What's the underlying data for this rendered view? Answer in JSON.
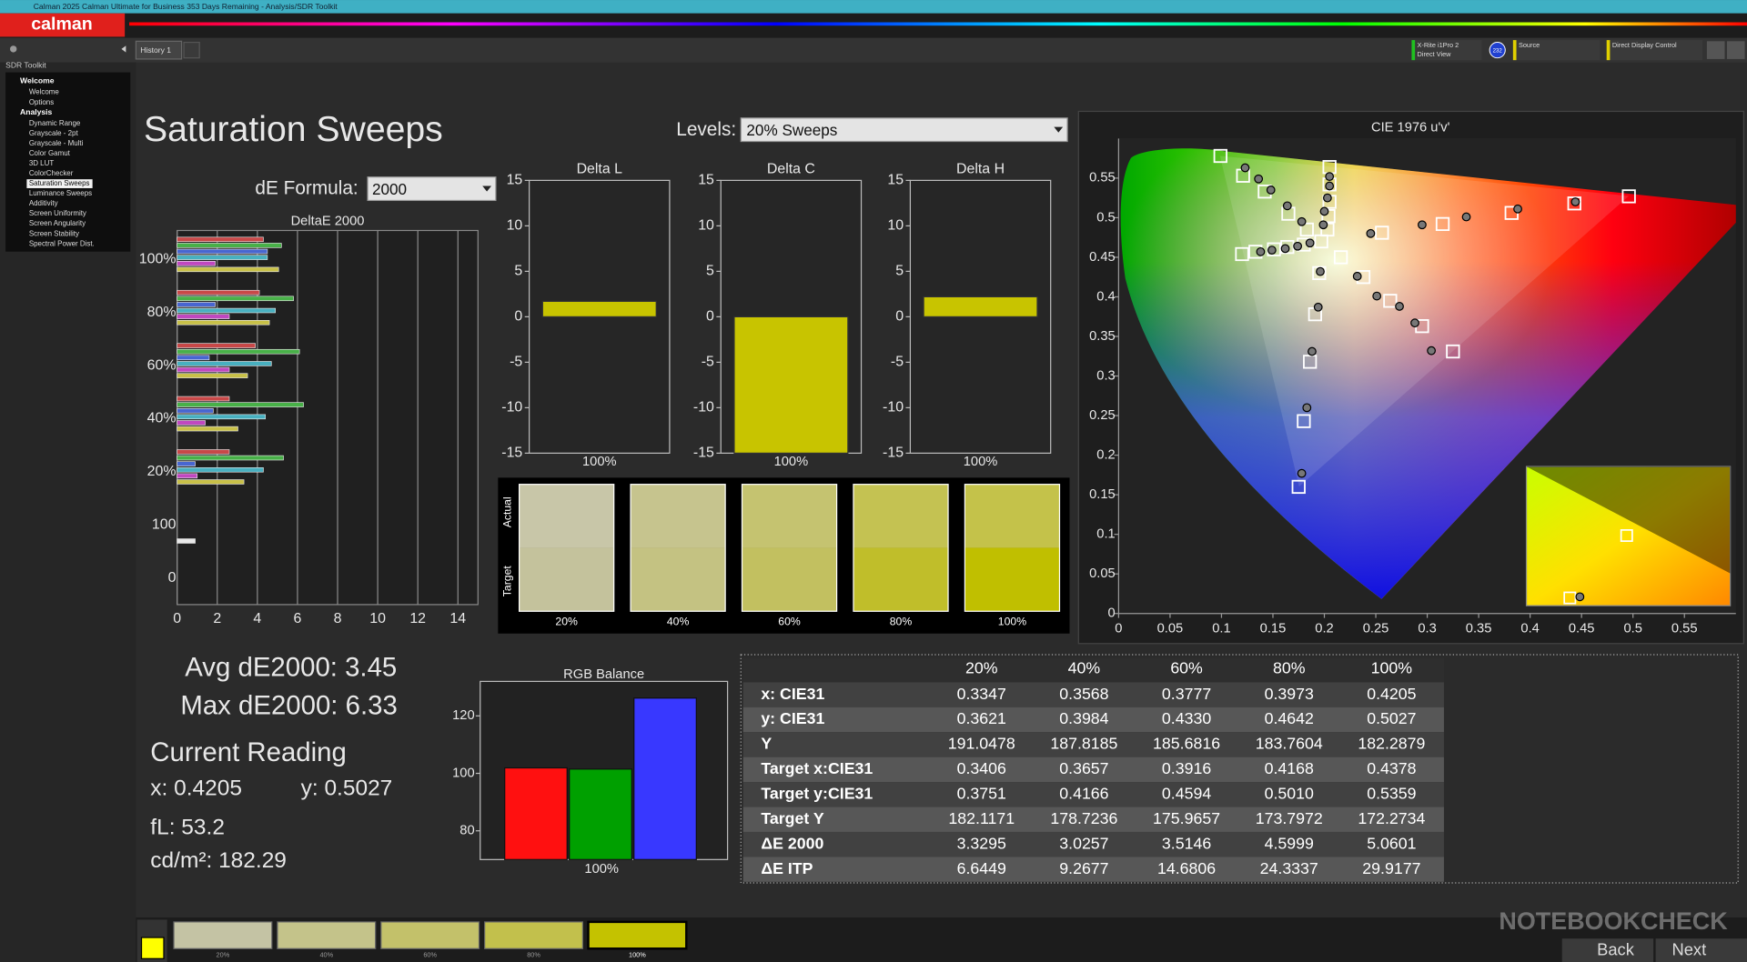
{
  "window": {
    "title": "Calman 2025 Calman Ultimate for Business 353 Days Remaining - Analysis/SDR Toolkit",
    "logo": "calman"
  },
  "tab": "History 1",
  "toolbar": {
    "meter": "X-Rite i1Pro 2",
    "meter_mode": "Direct View",
    "meter_badge": "232",
    "source": "Source",
    "display": "Direct Display Control"
  },
  "sidebar": {
    "title": "SDR Toolkit",
    "groups": [
      {
        "label": "Welcome",
        "items": [
          "Welcome",
          "Options"
        ]
      },
      {
        "label": "Analysis",
        "items": [
          "Dynamic Range",
          "Grayscale - 2pt",
          "Grayscale - Multi",
          "Color Gamut",
          "3D LUT",
          "ColorChecker",
          "Saturation Sweeps",
          "Luminance Sweeps",
          "Additivity",
          "Screen Uniformity",
          "Screen Angularity",
          "Screen Stability",
          "Spectral Power Dist."
        ]
      }
    ],
    "selected": [
      1,
      6
    ]
  },
  "page": {
    "title": "Saturation Sweeps",
    "levels_label": "Levels:",
    "levels_value": "20% Sweeps",
    "formula_label": "dE Formula:",
    "formula_value": "2000"
  },
  "de_chart": {
    "type": "bar",
    "orientation": "horizontal",
    "title": "DeltaE 2000",
    "categories": [
      "100%",
      "80%",
      "60%",
      "40%",
      "20%",
      "100",
      "0"
    ],
    "series": [
      {
        "color": "#c84848",
        "values": [
          4.3,
          4.1,
          3.9,
          2.6,
          2.6,
          null,
          null
        ]
      },
      {
        "color": "#48b048",
        "values": [
          5.2,
          5.8,
          6.1,
          6.3,
          5.3,
          null,
          null
        ]
      },
      {
        "color": "#4866d0",
        "values": [
          4.5,
          1.9,
          1.6,
          1.8,
          0.9,
          null,
          null
        ]
      },
      {
        "color": "#48b0c0",
        "values": [
          4.5,
          4.9,
          4.7,
          4.4,
          4.3,
          null,
          null
        ]
      },
      {
        "color": "#c048c0",
        "values": [
          1.9,
          2.6,
          2.6,
          1.4,
          1.0,
          null,
          null
        ]
      },
      {
        "color": "#c8c048",
        "values": [
          5.06,
          4.6,
          3.51,
          3.03,
          3.33,
          null,
          null
        ]
      },
      {
        "color": "#e8e8e8",
        "values": [
          null,
          null,
          null,
          null,
          null,
          0.9,
          null
        ]
      }
    ],
    "xlim": [
      0,
      15
    ],
    "xticks": [
      0,
      2,
      4,
      6,
      8,
      10,
      12,
      14
    ],
    "grid": true
  },
  "delta_charts": [
    {
      "type": "bar",
      "title": "Delta L",
      "categories": [
        "100%"
      ],
      "values": [
        1.7
      ],
      "color": "#c8c400",
      "ylim": [
        -15,
        15
      ],
      "yticks": [
        -15,
        -10,
        -5,
        0,
        5,
        10,
        15
      ]
    },
    {
      "type": "bar",
      "title": "Delta C",
      "categories": [
        "100%"
      ],
      "values": [
        -15
      ],
      "color": "#c8c400",
      "ylim": [
        -15,
        15
      ],
      "yticks": [
        -15,
        -10,
        -5,
        0,
        5,
        10,
        15
      ]
    },
    {
      "type": "bar",
      "title": "Delta H",
      "categories": [
        "100%"
      ],
      "values": [
        2.2
      ],
      "color": "#c8c400",
      "ylim": [
        -15,
        15
      ],
      "yticks": [
        -15,
        -10,
        -5,
        0,
        5,
        10,
        15
      ]
    }
  ],
  "swatches": {
    "row_labels": [
      "Actual",
      "Target"
    ],
    "categories": [
      "20%",
      "40%",
      "60%",
      "80%",
      "100%"
    ],
    "actual_colors": [
      "#c8c6a8",
      "#c6c48e",
      "#c5c370",
      "#c4c252",
      "#c4c24a"
    ],
    "target_colors": [
      "#c4c29c",
      "#c4c282",
      "#c2c060",
      "#c0be2a",
      "#c0bf00"
    ]
  },
  "stats": {
    "avg": "Avg dE2000: 3.45",
    "max": "Max dE2000: 6.33",
    "heading": "Current Reading",
    "x": "x: 0.4205",
    "y": "y: 0.5027",
    "fl": "fL: 53.2",
    "cdm2": "cd/m²: 182.29"
  },
  "rgb_chart": {
    "type": "bar",
    "title": "RGB Balance",
    "categories": [
      "100%"
    ],
    "series": [
      {
        "color": "#ff1010",
        "values": [
          101.9
        ]
      },
      {
        "color": "#00a000",
        "values": [
          101.5
        ]
      },
      {
        "color": "#3838ff",
        "values": [
          126.2
        ]
      }
    ],
    "ylim": [
      70,
      132
    ],
    "yticks": [
      80,
      100,
      120
    ]
  },
  "table": {
    "columns": [
      "20%",
      "40%",
      "60%",
      "80%",
      "100%"
    ],
    "rows": [
      {
        "label": "x: CIE31",
        "cells": [
          "0.3347",
          "0.3568",
          "0.3777",
          "0.3973",
          "0.4205"
        ]
      },
      {
        "label": "y: CIE31",
        "cells": [
          "0.3621",
          "0.3984",
          "0.4330",
          "0.4642",
          "0.5027"
        ]
      },
      {
        "label": "Y",
        "cells": [
          "191.0478",
          "187.8185",
          "185.6816",
          "183.7604",
          "182.2879"
        ]
      },
      {
        "label": "Target x:CIE31",
        "cells": [
          "0.3406",
          "0.3657",
          "0.3916",
          "0.4168",
          "0.4378"
        ]
      },
      {
        "label": "Target y:CIE31",
        "cells": [
          "0.3751",
          "0.4166",
          "0.4594",
          "0.5010",
          "0.5359"
        ]
      },
      {
        "label": "Target Y",
        "cells": [
          "182.1171",
          "178.7236",
          "175.9657",
          "173.7972",
          "172.2734"
        ]
      },
      {
        "label": "ΔE 2000",
        "cells": [
          "3.3295",
          "3.0257",
          "3.5146",
          "4.5999",
          "5.0601"
        ]
      },
      {
        "label": "ΔE ITP",
        "cells": [
          "6.6449",
          "9.2677",
          "14.6806",
          "24.3337",
          "29.9177"
        ]
      }
    ]
  },
  "cie_chart": {
    "type": "scatter",
    "title": "CIE 1976 u'v'",
    "xlim": [
      0,
      0.6
    ],
    "ylim": [
      0,
      0.6
    ],
    "xticks": [
      0,
      0.05,
      0.1,
      0.15,
      0.2,
      0.25,
      0.3,
      0.35,
      0.4,
      0.45,
      0.5,
      0.55
    ],
    "yticks": [
      0,
      0.05,
      0.1,
      0.15,
      0.2,
      0.25,
      0.3,
      0.35,
      0.4,
      0.45,
      0.5,
      0.55
    ],
    "series": [
      {
        "marker": "square",
        "x": [
          0.256,
          0.315,
          0.382,
          0.443,
          0.496,
          0.183,
          0.165,
          0.142,
          0.121,
          0.099,
          0.195,
          0.191,
          0.186,
          0.18,
          0.175,
          0.18,
          0.164,
          0.151,
          0.133,
          0.12,
          0.216,
          0.238,
          0.264,
          0.295,
          0.325,
          0.203,
          0.204,
          0.205,
          0.205,
          0.205,
          0.197
        ],
        "y": [
          0.481,
          0.492,
          0.506,
          0.518,
          0.527,
          0.485,
          0.505,
          0.533,
          0.553,
          0.578,
          0.43,
          0.378,
          0.318,
          0.243,
          0.16,
          0.466,
          0.463,
          0.46,
          0.457,
          0.454,
          0.45,
          0.425,
          0.395,
          0.363,
          0.331,
          0.485,
          0.502,
          0.52,
          0.542,
          0.564,
          0.47
        ]
      },
      {
        "marker": "circle",
        "x": [
          0.245,
          0.295,
          0.338,
          0.388,
          0.444,
          0.178,
          0.164,
          0.148,
          0.136,
          0.123,
          0.196,
          0.194,
          0.188,
          0.183,
          0.178,
          0.186,
          0.174,
          0.162,
          0.149,
          0.138,
          0.232,
          0.251,
          0.273,
          0.288,
          0.304,
          0.199,
          0.2,
          0.203,
          0.205,
          0.205
        ],
        "y": [
          0.48,
          0.491,
          0.501,
          0.511,
          0.52,
          0.495,
          0.515,
          0.535,
          0.549,
          0.563,
          0.432,
          0.387,
          0.331,
          0.26,
          0.177,
          0.468,
          0.464,
          0.461,
          0.459,
          0.457,
          0.426,
          0.401,
          0.388,
          0.367,
          0.332,
          0.491,
          0.508,
          0.525,
          0.54,
          0.552
        ]
      }
    ]
  },
  "bottom": {
    "swatches": [
      "20%",
      "40%",
      "60%",
      "80%",
      "100%"
    ],
    "swatch_colors": [
      "#c4c3a4",
      "#c4c38a",
      "#c3c16a",
      "#c2c04c",
      "#c4c200"
    ],
    "back": "Back",
    "next": "Next",
    "watermark": "NOTEBOOKCHECK"
  }
}
